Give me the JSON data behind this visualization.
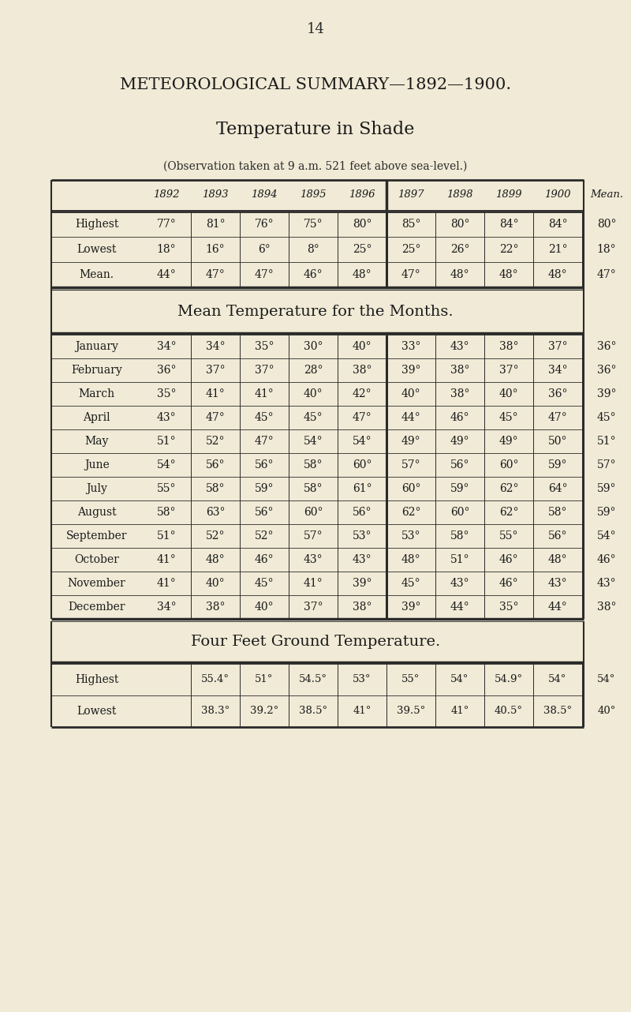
{
  "page_number": "14",
  "main_title": "METEOROLOGICAL SUMMARY—1892—1900.",
  "subtitle": "Temperature in Shade",
  "observation_note": "(Observation taken at 9 a.m. 521 feet above sea-level.)",
  "bg_color": "#f0ead6",
  "years": [
    "1892",
    "1893",
    "1894",
    "1895",
    "1896",
    "1897",
    "1898",
    "1899",
    "1900",
    "Mean."
  ],
  "top_section": {
    "rows": [
      {
        "label": "Highest",
        "values": [
          "77°",
          "81°",
          "76°",
          "75°",
          "80°",
          "85°",
          "80°",
          "84°",
          "84°",
          "80°"
        ]
      },
      {
        "label": "Lowest",
        "values": [
          "18°",
          "16°",
          "6°",
          "8°",
          "25°",
          "25°",
          "26°",
          "22°",
          "21°",
          "18°"
        ]
      },
      {
        "label": "Mean.",
        "values": [
          "44°",
          "47°",
          "47°",
          "46°",
          "48°",
          "47°",
          "48°",
          "48°",
          "48°",
          "47°"
        ]
      }
    ]
  },
  "mid_title": "Mean Temperature for the Months.",
  "months_section": {
    "rows": [
      {
        "label": "January",
        "values": [
          "34°",
          "34°",
          "35°",
          "30°",
          "40°",
          "33°",
          "43°",
          "38°",
          "37°",
          "36°"
        ]
      },
      {
        "label": "February",
        "values": [
          "36°",
          "37°",
          "37°",
          "28°",
          "38°",
          "39°",
          "38°",
          "37°",
          "34°",
          "36°"
        ]
      },
      {
        "label": "March",
        "values": [
          "35°",
          "41°",
          "41°",
          "40°",
          "42°",
          "40°",
          "38°",
          "40°",
          "36°",
          "39°"
        ]
      },
      {
        "label": "April",
        "values": [
          "43°",
          "47°",
          "45°",
          "45°",
          "47°",
          "44°",
          "46°",
          "45°",
          "47°",
          "45°"
        ]
      },
      {
        "label": "May",
        "values": [
          "51°",
          "52°",
          "47°",
          "54°",
          "54°",
          "49°",
          "49°",
          "49°",
          "50°",
          "51°"
        ]
      },
      {
        "label": "June",
        "values": [
          "54°",
          "56°",
          "56°",
          "58°",
          "60°",
          "57°",
          "56°",
          "60°",
          "59°",
          "57°"
        ]
      },
      {
        "label": "July",
        "values": [
          "55°",
          "58°",
          "59°",
          "58°",
          "61°",
          "60°",
          "59°",
          "62°",
          "64°",
          "59°"
        ]
      },
      {
        "label": "August",
        "values": [
          "58°",
          "63°",
          "56°",
          "60°",
          "56°",
          "62°",
          "60°",
          "62°",
          "58°",
          "59°"
        ]
      },
      {
        "label": "September",
        "values": [
          "51°",
          "52°",
          "52°",
          "57°",
          "53°",
          "53°",
          "58°",
          "55°",
          "56°",
          "54°"
        ]
      },
      {
        "label": "October",
        "values": [
          "41°",
          "48°",
          "46°",
          "43°",
          "43°",
          "48°",
          "51°",
          "46°",
          "48°",
          "46°"
        ]
      },
      {
        "label": "November",
        "values": [
          "41°",
          "40°",
          "45°",
          "41°",
          "39°",
          "45°",
          "43°",
          "46°",
          "43°",
          "43°"
        ]
      },
      {
        "label": "December",
        "values": [
          "34°",
          "38°",
          "40°",
          "37°",
          "38°",
          "39°",
          "44°",
          "35°",
          "44°",
          "38°"
        ]
      }
    ]
  },
  "ground_title": "Four Feet Ground Temperature.",
  "ground_section": {
    "rows": [
      {
        "label": "Highest",
        "values": [
          "55.4°",
          "51°",
          "54.5°",
          "53°",
          "55°",
          "54°",
          "54.9°",
          "54°",
          "54°"
        ]
      },
      {
        "label": "Lowest",
        "values": [
          "38.3°",
          "39.2°",
          "38.5°",
          "41°",
          "39.5°",
          "41°",
          "40.5°",
          "38.5°",
          "40°"
        ]
      }
    ]
  }
}
